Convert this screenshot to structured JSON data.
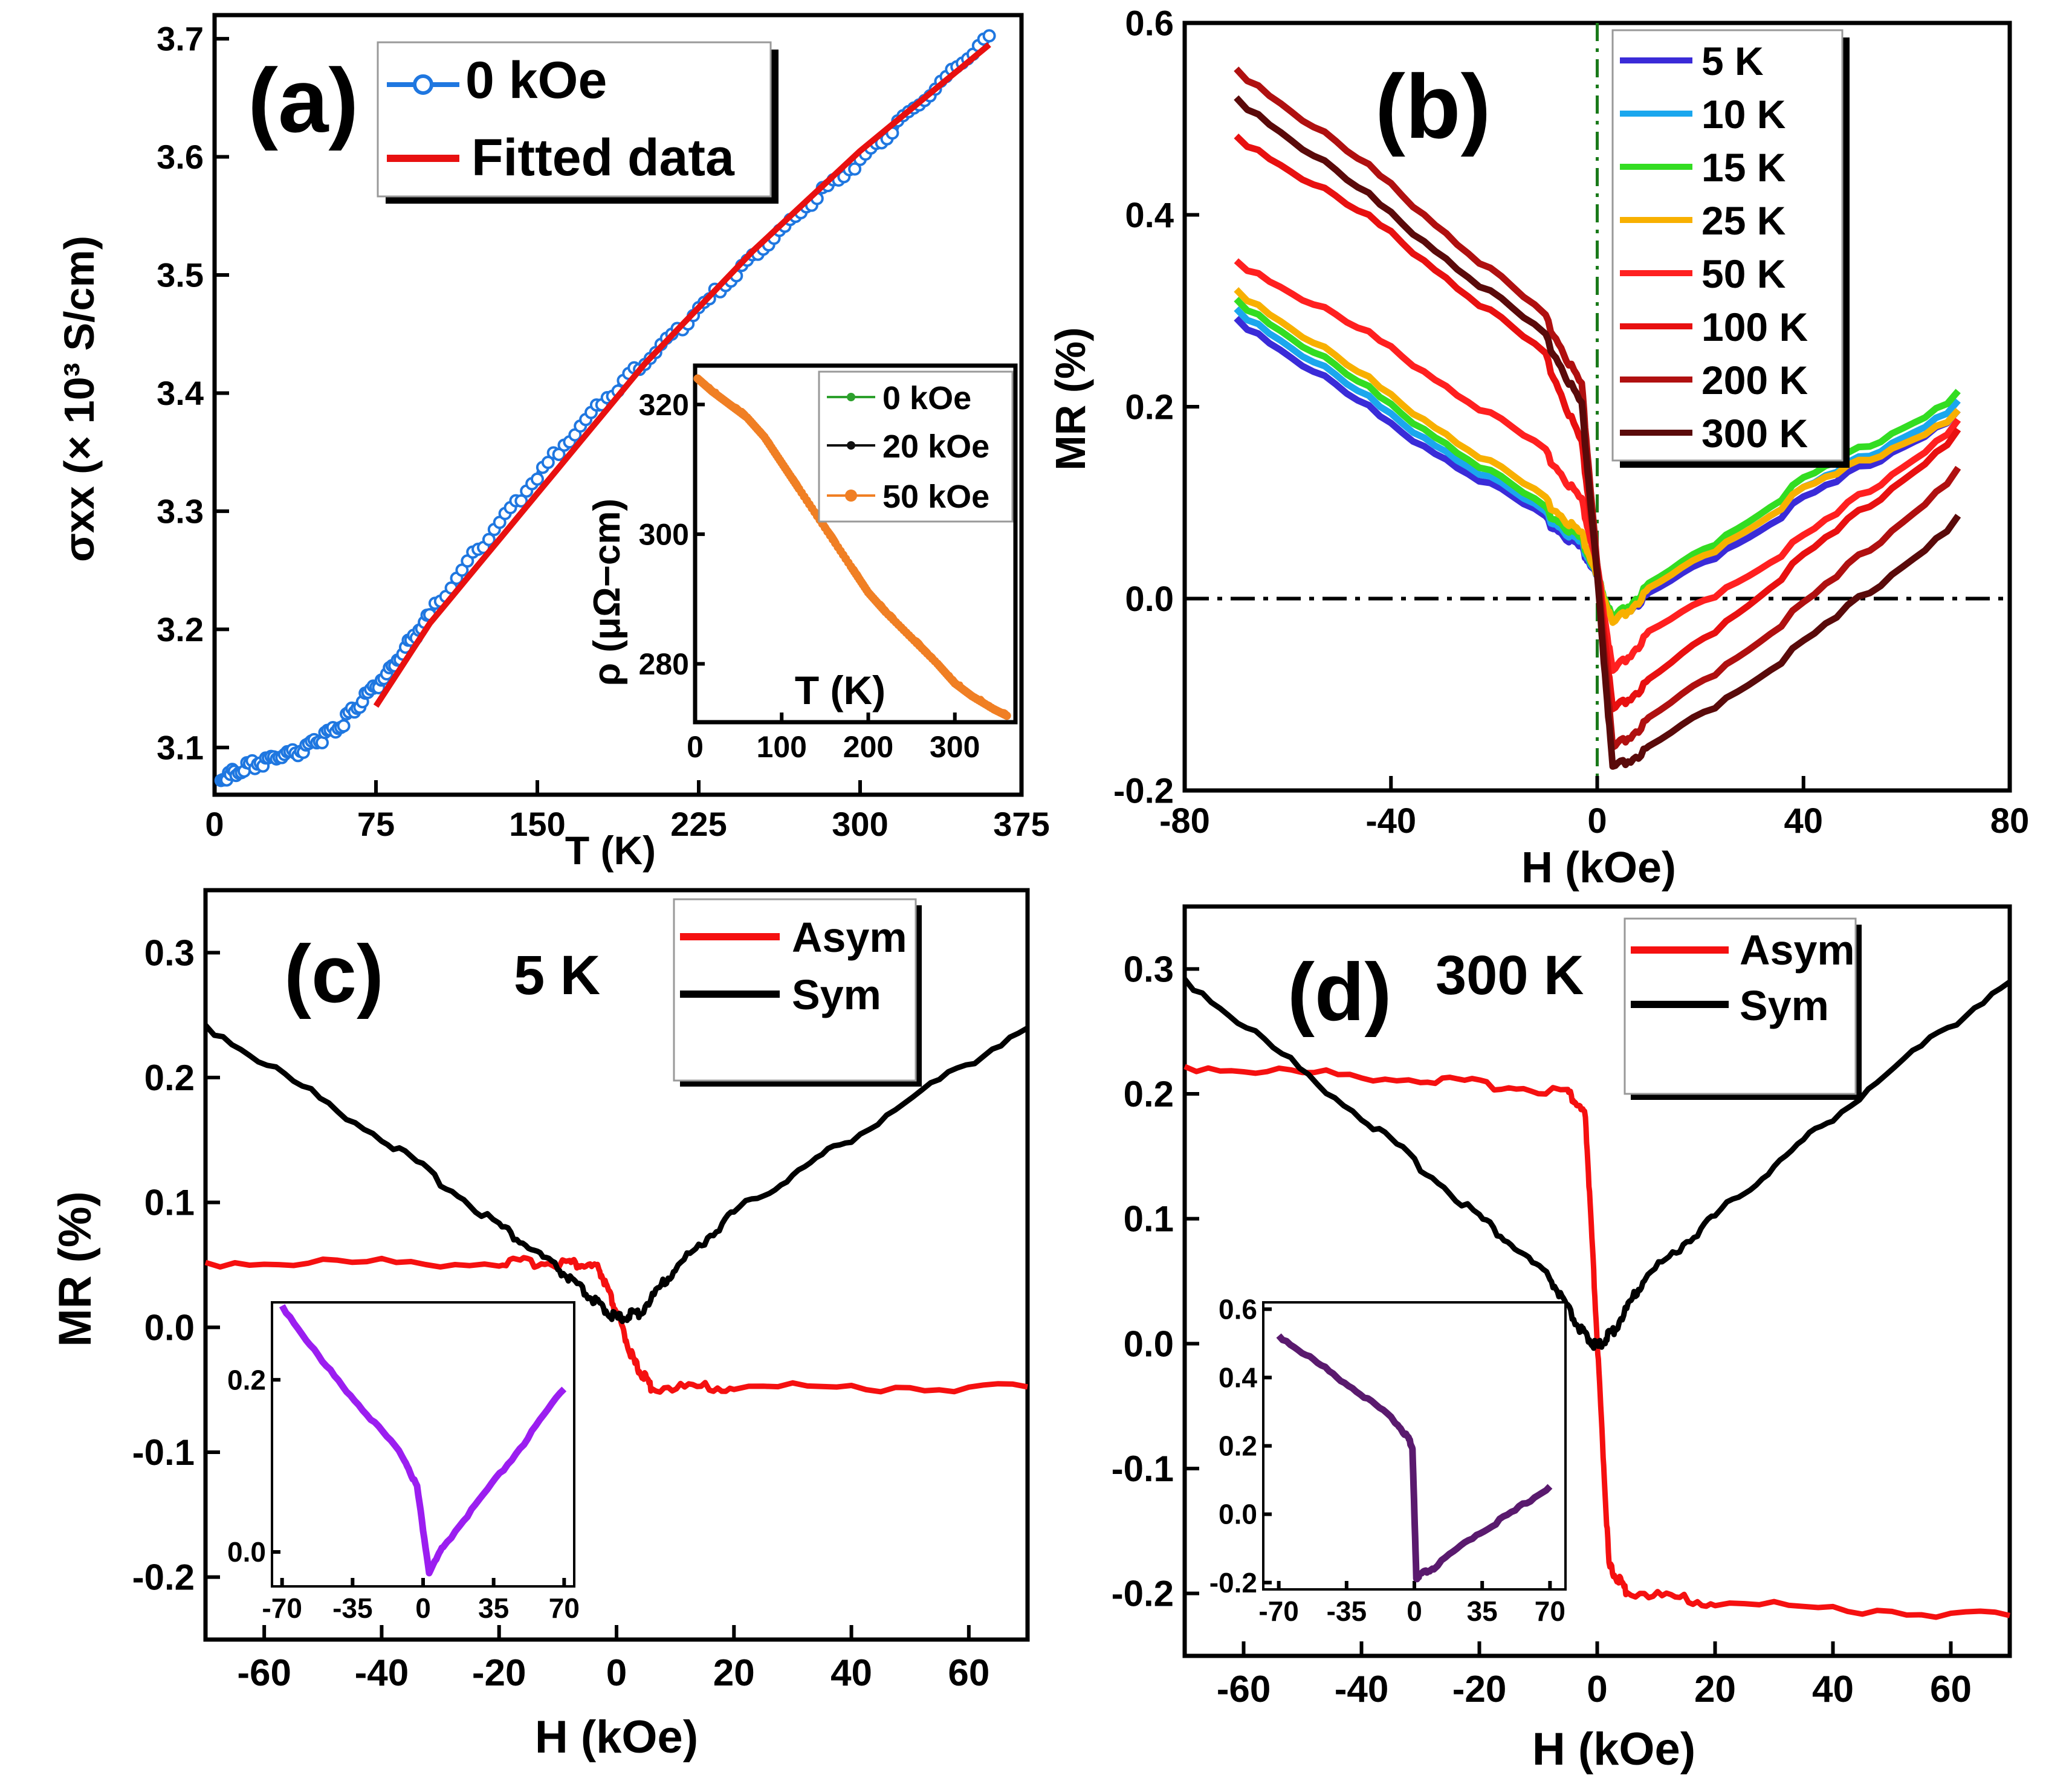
{
  "chart_data": [
    {
      "id": "a",
      "type": "line",
      "panel_label": "(a)",
      "xlabel": "T (K)",
      "ylabel": "σxx (× 10³ S/cm)",
      "xlim": [
        0,
        375
      ],
      "ylim": [
        3.06,
        3.72
      ],
      "xticks": [
        0,
        75,
        150,
        225,
        300,
        375
      ],
      "xtick_labels": [
        "0",
        "75",
        "150",
        "225",
        "300",
        "375"
      ],
      "yticks": [
        3.1,
        3.2,
        3.3,
        3.4,
        3.5,
        3.6,
        3.7
      ],
      "ytick_labels": [
        "3.1",
        "3.2",
        "3.3",
        "3.4",
        "3.5",
        "3.6",
        "3.7"
      ],
      "legend_position": "top-left",
      "series": [
        {
          "name": "0 kOe",
          "color": "#1f77e0",
          "style": "markers-line",
          "x": [
            3,
            10,
            20,
            30,
            40,
            50,
            60,
            70,
            80,
            90,
            100,
            120,
            140,
            160,
            180,
            200,
            220,
            240,
            260,
            280,
            300,
            320,
            340,
            360
          ],
          "y": [
            3.07,
            3.078,
            3.085,
            3.09,
            3.095,
            3.105,
            3.12,
            3.14,
            3.16,
            3.185,
            3.21,
            3.26,
            3.305,
            3.35,
            3.39,
            3.425,
            3.46,
            3.495,
            3.53,
            3.565,
            3.595,
            3.63,
            3.665,
            3.7
          ]
        },
        {
          "name": "Fitted data",
          "color": "#e81010",
          "style": "line",
          "x": [
            75,
            100,
            150,
            200,
            250,
            300,
            360
          ],
          "y": [
            3.135,
            3.205,
            3.315,
            3.425,
            3.52,
            3.605,
            3.695
          ]
        }
      ],
      "inset": {
        "xlabel": "T (K)",
        "ylabel": "ρ (μΩ−cm)",
        "xlim": [
          0,
          370
        ],
        "ylim": [
          271,
          326
        ],
        "xticks": [
          0,
          100,
          200,
          300
        ],
        "xtick_labels": [
          "0",
          "100",
          "200",
          "300"
        ],
        "yticks": [
          280,
          300,
          320
        ],
        "ytick_labels": [
          "280",
          "300",
          "320"
        ],
        "series": [
          {
            "name": "0 kOe",
            "color": "#2ca02c"
          },
          {
            "name": "20 kOe",
            "color": "#111111"
          },
          {
            "name": "50 kOe",
            "color": "#f07f24"
          }
        ],
        "x": [
          3,
          20,
          40,
          60,
          80,
          100,
          120,
          150,
          180,
          200,
          220,
          250,
          280,
          300,
          320,
          345,
          360
        ],
        "y": [
          324,
          322,
          320,
          318,
          315,
          311,
          307,
          301,
          295,
          291,
          288,
          284,
          280,
          277,
          275,
          273,
          272
        ]
      }
    },
    {
      "id": "b",
      "type": "line",
      "panel_label": "(b)",
      "xlabel": "H (kOe)",
      "ylabel": "MR (%)",
      "xlim": [
        -80,
        80
      ],
      "ylim": [
        -0.2,
        0.6
      ],
      "xticks": [
        -80,
        -40,
        0,
        40,
        80
      ],
      "xtick_labels": [
        "-80",
        "-40",
        "0",
        "40",
        "80"
      ],
      "yticks": [
        -0.2,
        0.0,
        0.2,
        0.4,
        0.6
      ],
      "ytick_labels": [
        "-0.2",
        "0.0",
        "0.2",
        "0.4",
        "0.6"
      ],
      "legend_position": "top-right",
      "series": [
        {
          "name": "5 K",
          "color": "#3a2bd8",
          "x": [
            -70,
            -40,
            -10,
            -3,
            0,
            3,
            10,
            40,
            70
          ],
          "y": [
            0.29,
            0.18,
            0.08,
            0.05,
            0.02,
            -0.025,
            0.0,
            0.1,
            0.19
          ]
        },
        {
          "name": "10 K",
          "color": "#1ba7ee",
          "x": [
            -70,
            -40,
            -10,
            -3,
            0,
            3,
            10,
            40,
            70
          ],
          "y": [
            0.3,
            0.19,
            0.085,
            0.055,
            0.02,
            -0.025,
            0.005,
            0.11,
            0.2
          ]
        },
        {
          "name": "15 K",
          "color": "#33dd22",
          "x": [
            -70,
            -40,
            -10,
            -3,
            0,
            3,
            10,
            40,
            70
          ],
          "y": [
            0.31,
            0.2,
            0.09,
            0.06,
            0.02,
            -0.025,
            0.01,
            0.12,
            0.21
          ]
        },
        {
          "name": "25 K",
          "color": "#f8b000",
          "x": [
            -70,
            -40,
            -10,
            -3,
            0,
            3,
            10,
            40,
            70
          ],
          "y": [
            0.32,
            0.21,
            0.1,
            0.065,
            0.02,
            -0.03,
            0.005,
            0.11,
            0.19
          ]
        },
        {
          "name": "50 K",
          "color": "#ff2020",
          "x": [
            -70,
            -40,
            -10,
            -3,
            0,
            3,
            10,
            40,
            70
          ],
          "y": [
            0.35,
            0.26,
            0.15,
            0.1,
            0.03,
            -0.08,
            -0.04,
            0.06,
            0.18
          ]
        },
        {
          "name": "100 K",
          "color": "#e81010",
          "x": [
            -70,
            -40,
            -10,
            -3,
            0,
            3,
            10,
            40,
            70
          ],
          "y": [
            0.48,
            0.38,
            0.25,
            0.16,
            0.03,
            -0.12,
            -0.09,
            0.04,
            0.17
          ]
        },
        {
          "name": "200 K",
          "color": "#b01010",
          "x": [
            -70,
            -40,
            -10,
            -3,
            0,
            3,
            10,
            40,
            70
          ],
          "y": [
            0.55,
            0.43,
            0.29,
            0.22,
            0.03,
            -0.16,
            -0.13,
            -0.01,
            0.13
          ]
        },
        {
          "name": "300 K",
          "color": "#5a0a0a",
          "x": [
            -70,
            -40,
            -10,
            -3,
            0,
            3,
            10,
            40,
            70
          ],
          "y": [
            0.52,
            0.4,
            0.27,
            0.2,
            0.02,
            -0.18,
            -0.16,
            -0.05,
            0.08
          ]
        }
      ]
    },
    {
      "id": "c",
      "type": "line",
      "panel_label": "(c)",
      "annotation": "5 K",
      "xlabel": "H (kOe)",
      "ylabel": "MR (%)",
      "xlim": [
        -70,
        70
      ],
      "ylim": [
        -0.25,
        0.35
      ],
      "xticks": [
        -60,
        -40,
        -20,
        0,
        20,
        40,
        60
      ],
      "xtick_labels": [
        "-60",
        "-40",
        "-20",
        "0",
        "20",
        "40",
        "60"
      ],
      "yticks": [
        -0.2,
        -0.1,
        0.0,
        0.1,
        0.2,
        0.3
      ],
      "ytick_labels": [
        "-0.2",
        "-0.1",
        "0.0",
        "0.1",
        "0.2",
        "0.3"
      ],
      "legend_position": "top-right",
      "series": [
        {
          "name": "Asym",
          "color": "#f51010",
          "x": [
            -70,
            -20,
            -8,
            -3,
            0,
            3,
            6,
            20,
            70
          ],
          "y": [
            0.05,
            0.05,
            0.05,
            0.045,
            0.01,
            -0.03,
            -0.05,
            -0.05,
            -0.05
          ]
        },
        {
          "name": "Sym",
          "color": "#000000",
          "x": [
            -70,
            -40,
            -20,
            -10,
            -4,
            0,
            4,
            10,
            20,
            40,
            70
          ],
          "y": [
            0.24,
            0.15,
            0.08,
            0.045,
            0.02,
            0.005,
            0.01,
            0.045,
            0.09,
            0.15,
            0.24
          ]
        }
      ],
      "inset": {
        "xlim": [
          -75,
          75
        ],
        "ylim": [
          -0.04,
          0.29
        ],
        "xticks": [
          -70,
          -35,
          0,
          35,
          70
        ],
        "xtick_labels": [
          "-70",
          "-35",
          "0",
          "35",
          "70"
        ],
        "yticks": [
          0.0,
          0.2
        ],
        "ytick_labels": [
          "0.0",
          "0.2"
        ],
        "color": "#9b1ef0",
        "x": [
          -70,
          -50,
          -30,
          -10,
          -3,
          3,
          10,
          30,
          50,
          70
        ],
        "y": [
          0.285,
          0.22,
          0.165,
          0.11,
          0.075,
          -0.025,
          0.005,
          0.065,
          0.125,
          0.19
        ]
      }
    },
    {
      "id": "d",
      "type": "line",
      "panel_label": "(d)",
      "annotation": "300 K",
      "xlabel": "H (kOe)",
      "ylabel": "",
      "xlim": [
        -70,
        70
      ],
      "ylim": [
        -0.25,
        0.35
      ],
      "xticks": [
        -60,
        -40,
        -20,
        0,
        20,
        40,
        60
      ],
      "xtick_labels": [
        "-60",
        "-40",
        "-20",
        "0",
        "20",
        "40",
        "60"
      ],
      "yticks": [
        -0.2,
        -0.1,
        0.0,
        0.1,
        0.2,
        0.3
      ],
      "ytick_labels": [
        "-0.2",
        "-0.1",
        "0.0",
        "0.1",
        "0.2",
        "0.3"
      ],
      "legend_position": "top-right",
      "series": [
        {
          "name": "Asym",
          "color": "#f51010",
          "x": [
            -70,
            -30,
            -5,
            -2,
            0,
            2,
            5,
            20,
            70
          ],
          "y": [
            0.22,
            0.21,
            0.2,
            0.18,
            0.0,
            -0.18,
            -0.2,
            -0.21,
            -0.22
          ]
        },
        {
          "name": "Sym",
          "color": "#000000",
          "x": [
            -70,
            -40,
            -20,
            -8,
            -3,
            0,
            3,
            8,
            20,
            40,
            70
          ],
          "y": [
            0.29,
            0.18,
            0.1,
            0.05,
            0.01,
            -0.005,
            0.01,
            0.05,
            0.1,
            0.18,
            0.29
          ]
        }
      ],
      "inset": {
        "xlim": [
          -78,
          78
        ],
        "ylim": [
          -0.22,
          0.62
        ],
        "xticks": [
          -70,
          -35,
          0,
          35,
          70
        ],
        "xtick_labels": [
          "-70",
          "-35",
          "0",
          "35",
          "70"
        ],
        "yticks": [
          -0.2,
          0.0,
          0.2,
          0.4,
          0.6
        ],
        "ytick_labels": [
          "-0.2",
          "0.0",
          "0.2",
          "0.4",
          "0.6"
        ],
        "color": "#5a1a6e",
        "x": [
          -70,
          -50,
          -30,
          -10,
          -3,
          -1,
          1,
          3,
          10,
          30,
          50,
          70
        ],
        "y": [
          0.52,
          0.44,
          0.36,
          0.27,
          0.22,
          0.19,
          -0.19,
          -0.18,
          -0.16,
          -0.07,
          0.0,
          0.08
        ]
      }
    }
  ]
}
